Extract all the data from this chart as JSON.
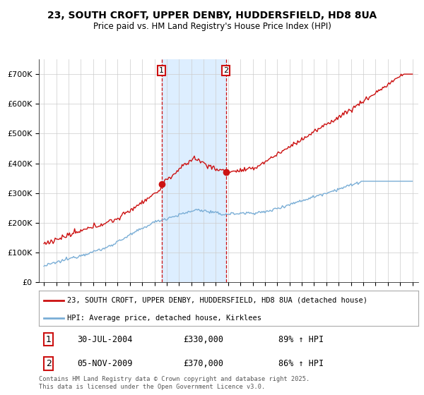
{
  "title_line1": "23, SOUTH CROFT, UPPER DENBY, HUDDERSFIELD, HD8 8UA",
  "title_line2": "Price paid vs. HM Land Registry's House Price Index (HPI)",
  "ylim": [
    0,
    750000
  ],
  "yticks": [
    0,
    100000,
    200000,
    300000,
    400000,
    500000,
    600000,
    700000
  ],
  "ytick_labels": [
    "£0",
    "£100K",
    "£200K",
    "£300K",
    "£400K",
    "£500K",
    "£600K",
    "£700K"
  ],
  "hpi_color": "#7aaed6",
  "price_color": "#cc1111",
  "annotation_color": "#cc1111",
  "vline_color": "#cc1111",
  "shade_color": "#ddeeff",
  "legend_line1": "23, SOUTH CROFT, UPPER DENBY, HUDDERSFIELD, HD8 8UA (detached house)",
  "legend_line2": "HPI: Average price, detached house, Kirklees",
  "note1_box": "1",
  "note1_date": "30-JUL-2004",
  "note1_price": "£330,000",
  "note1_hpi": "89% ↑ HPI",
  "note2_box": "2",
  "note2_date": "05-NOV-2009",
  "note2_price": "£370,000",
  "note2_hpi": "86% ↑ HPI",
  "footer": "Contains HM Land Registry data © Crown copyright and database right 2025.\nThis data is licensed under the Open Government Licence v3.0.",
  "bg_color": "#ffffff",
  "grid_color": "#cccccc",
  "xstart": 1995,
  "xend": 2025,
  "t1_year": 2004.58,
  "t2_year": 2009.84,
  "t1_price": 330000,
  "t2_price": 370000
}
